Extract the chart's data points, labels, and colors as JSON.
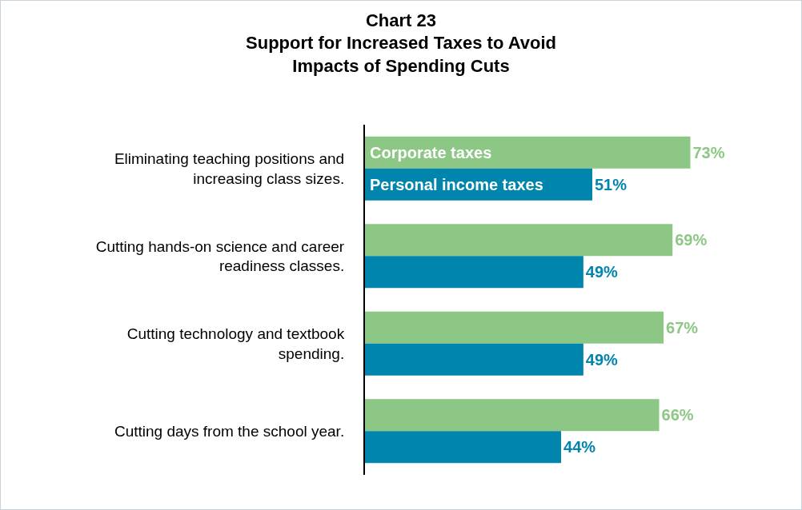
{
  "chart_data": {
    "type": "bar",
    "orientation": "horizontal",
    "title": "Chart 23\nSupport for Increased Taxes to Avoid\nImpacts of Spending Cuts",
    "categories": [
      "Eliminating teaching positions and increasing class sizes.",
      "Cutting hands-on science and career readiness classes.",
      "Cutting technology and textbook spending.",
      "Cutting days from the school year."
    ],
    "series": [
      {
        "name": "Corporate taxes",
        "color": "#8dc785",
        "values": [
          73,
          69,
          67,
          66
        ],
        "value_labels": [
          "73%",
          "69%",
          "67%",
          "66%"
        ]
      },
      {
        "name": "Personal income taxes",
        "color": "#0085ad",
        "values": [
          51,
          49,
          49,
          44
        ],
        "value_labels": [
          "51%",
          "49%",
          "49%",
          "44%"
        ]
      }
    ],
    "legend": false,
    "grid": false
  }
}
